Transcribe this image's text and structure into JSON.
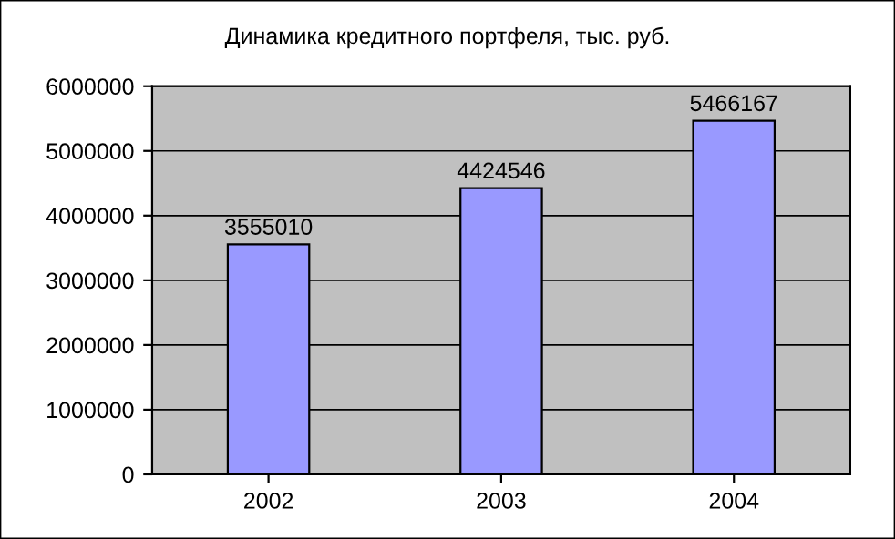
{
  "chart_data": {
    "type": "bar",
    "title": "Динамика кредитного портфеля, тыс. руб.",
    "categories": [
      "2002",
      "2003",
      "2004"
    ],
    "values": [
      3555010,
      4424546,
      5466167
    ],
    "color": "#9999ff",
    "ylim": [
      0,
      6000000
    ],
    "yticks": [
      0,
      1000000,
      2000000,
      3000000,
      4000000,
      5000000,
      6000000
    ],
    "grid": "y",
    "data_labels": true
  }
}
